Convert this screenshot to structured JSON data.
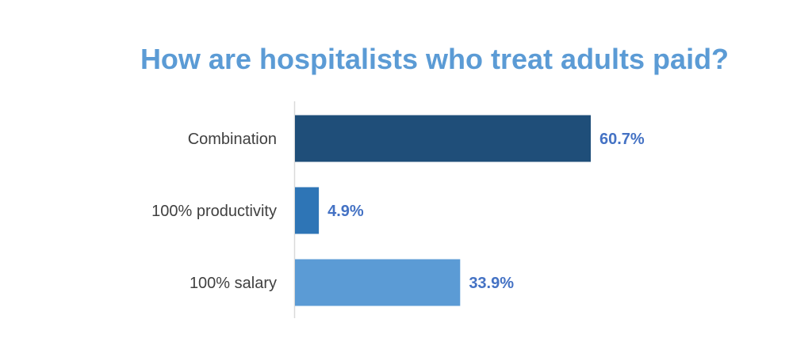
{
  "chart_data": {
    "type": "bar",
    "orientation": "horizontal",
    "title": "How are hospitalists who treat adults paid?",
    "categories": [
      "Combination",
      "100% productivity",
      "100% salary"
    ],
    "values": [
      60.7,
      4.9,
      33.9
    ],
    "data_labels": [
      "60.7%",
      "4.9%",
      "33.9%"
    ],
    "unit": "%",
    "colors": [
      "#1f4e79",
      "#2e75b6",
      "#5b9bd5"
    ],
    "label_color": "#4472c4",
    "title_color": "#5b9bd5",
    "xlim": [
      0,
      60.7
    ],
    "grid": false,
    "legend": "none"
  }
}
